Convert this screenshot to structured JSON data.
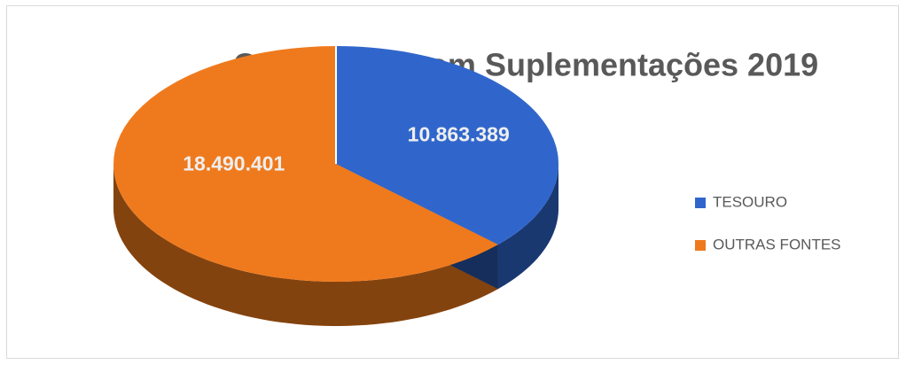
{
  "chart_data": {
    "type": "pie3d",
    "title": "Orçamento com Suplementações 2019",
    "categories": [
      "TESOURO",
      "OUTRAS FONTES"
    ],
    "values": [
      10863389,
      18490401
    ],
    "value_labels": [
      "10.863.389",
      "18.490.401"
    ],
    "colors": [
      "#3066cc",
      "#ef7a1d"
    ],
    "legend": "right"
  }
}
